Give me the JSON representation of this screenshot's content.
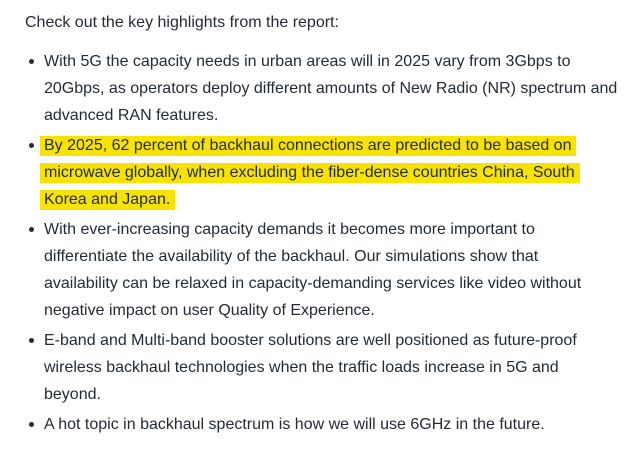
{
  "content": {
    "intro": "Check out the key highlights from the report:",
    "text_color": "#222b36",
    "highlight_color": "#f8e300",
    "bullets": [
      {
        "highlighted": false,
        "lines": [
          "With 5G the capacity needs in urban areas will in 2025 vary from 3Gbps to",
          "20Gbps, as operators deploy different amounts of New Radio (NR) spectrum and",
          "advanced RAN features."
        ]
      },
      {
        "highlighted": true,
        "lines": [
          "By 2025, 62 percent of backhaul connections are predicted to be based on",
          "microwave globally, when excluding the fiber-dense countries China, South",
          "Korea and Japan."
        ]
      },
      {
        "highlighted": false,
        "lines": [
          "With ever-increasing capacity demands it becomes more important to",
          "differentiate the availability of the backhaul. Our simulations show that",
          "availability can be relaxed in capacity-demanding services like video without",
          "negative impact on user Quality of Experience."
        ]
      },
      {
        "highlighted": false,
        "lines": [
          "E-band and Multi-band booster solutions are well positioned as future-proof",
          "wireless backhaul technologies when the traffic loads increase in 5G and",
          "beyond."
        ]
      },
      {
        "highlighted": false,
        "lines": [
          "A hot topic in backhaul spectrum is how we will use 6GHz in the future."
        ]
      }
    ]
  }
}
